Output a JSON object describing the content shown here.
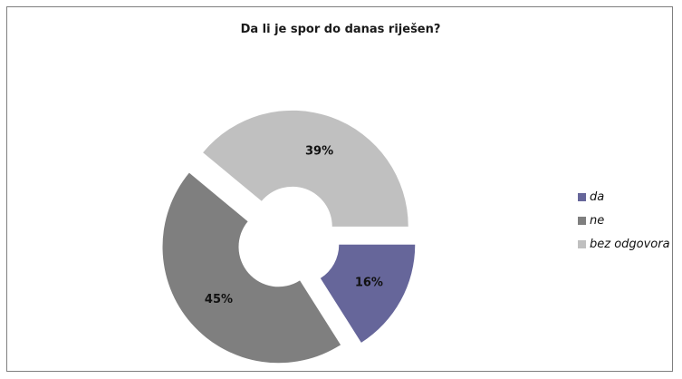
{
  "chart_data": {
    "type": "pie",
    "variant": "exploded-donut",
    "title": "Da li je spor do danas riješen?",
    "categories": [
      "da",
      "ne",
      "bez odgovora"
    ],
    "values": [
      16,
      45,
      39
    ],
    "value_labels": [
      "16%",
      "45%",
      "39%"
    ],
    "colors": [
      "#66669a",
      "#7f7f7f",
      "#c0c0c0"
    ],
    "legend_position": "right"
  }
}
